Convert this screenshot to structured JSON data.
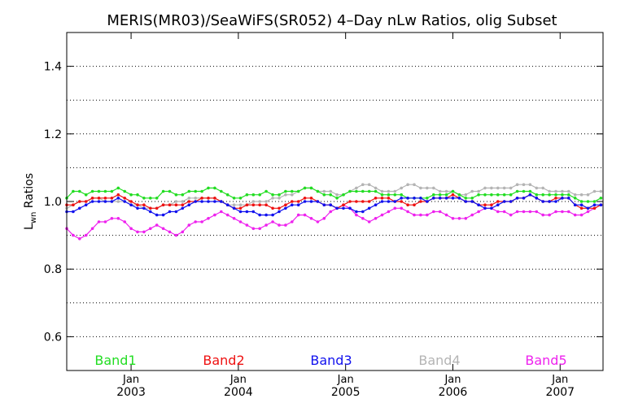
{
  "chart_data": {
    "type": "line",
    "title": "MERIS(MR03)/SeaWiFS(SR052) 4–Day nLw Ratios, olig Subset",
    "ylabel_main": "L",
    "ylabel_sub": "wn",
    "ylabel_rest": " Ratios",
    "xlim": [
      2002.4,
      2007.4
    ],
    "ylim": [
      0.5,
      1.5
    ],
    "yticks": [
      {
        "value": 0.6,
        "label": "0.6"
      },
      {
        "value": 0.8,
        "label": "0.8"
      },
      {
        "value": 1.0,
        "label": "1.0"
      },
      {
        "value": 1.2,
        "label": "1.2"
      },
      {
        "value": 1.4,
        "label": "1.4"
      }
    ],
    "ygrid": [
      0.6,
      0.7,
      0.8,
      0.9,
      1.0,
      1.1,
      1.2,
      1.3,
      1.4
    ],
    "xticks": [
      {
        "value": 2003.0,
        "month": "Jan",
        "year": "2003"
      },
      {
        "value": 2004.0,
        "month": "Jan",
        "year": "2004"
      },
      {
        "value": 2005.0,
        "month": "Jan",
        "year": "2005"
      },
      {
        "value": 2006.0,
        "month": "Jan",
        "year": "2006"
      },
      {
        "value": 2007.0,
        "month": "Jan",
        "year": "2007"
      }
    ],
    "x": [
      2002.4,
      2002.46,
      2002.52,
      2002.58,
      2002.64,
      2002.7,
      2002.76,
      2002.82,
      2002.88,
      2002.94,
      2003.0,
      2003.06,
      2003.12,
      2003.18,
      2003.24,
      2003.3,
      2003.36,
      2003.42,
      2003.48,
      2003.54,
      2003.6,
      2003.66,
      2003.72,
      2003.78,
      2003.84,
      2003.9,
      2003.96,
      2004.02,
      2004.08,
      2004.14,
      2004.2,
      2004.26,
      2004.32,
      2004.38,
      2004.44,
      2004.5,
      2004.56,
      2004.62,
      2004.68,
      2004.74,
      2004.8,
      2004.86,
      2004.92,
      2004.98,
      2005.04,
      2005.1,
      2005.16,
      2005.22,
      2005.28,
      2005.34,
      2005.4,
      2005.46,
      2005.52,
      2005.58,
      2005.64,
      2005.7,
      2005.76,
      2005.82,
      2005.88,
      2005.94,
      2006.0,
      2006.06,
      2006.12,
      2006.18,
      2006.24,
      2006.3,
      2006.36,
      2006.42,
      2006.48,
      2006.54,
      2006.6,
      2006.66,
      2006.72,
      2006.78,
      2006.84,
      2006.9,
      2006.96,
      2007.02,
      2007.08,
      2007.14,
      2007.2,
      2007.26,
      2007.32,
      2007.38
    ],
    "series": [
      {
        "name": "Band1",
        "color": "#22dd22",
        "values": [
          1.01,
          1.03,
          1.03,
          1.02,
          1.03,
          1.03,
          1.03,
          1.03,
          1.04,
          1.03,
          1.02,
          1.02,
          1.01,
          1.01,
          1.01,
          1.03,
          1.03,
          1.02,
          1.02,
          1.03,
          1.03,
          1.03,
          1.04,
          1.04,
          1.03,
          1.02,
          1.01,
          1.01,
          1.02,
          1.02,
          1.02,
          1.03,
          1.02,
          1.02,
          1.03,
          1.03,
          1.03,
          1.04,
          1.04,
          1.03,
          1.02,
          1.02,
          1.01,
          1.02,
          1.03,
          1.03,
          1.03,
          1.03,
          1.03,
          1.02,
          1.02,
          1.02,
          1.02,
          1.01,
          1.01,
          1.01,
          1.01,
          1.02,
          1.02,
          1.02,
          1.03,
          1.02,
          1.01,
          1.01,
          1.02,
          1.02,
          1.02,
          1.02,
          1.02,
          1.02,
          1.03,
          1.03,
          1.03,
          1.02,
          1.02,
          1.02,
          1.02,
          1.02,
          1.02,
          1.01,
          1.0,
          1.0,
          1.0,
          1.01
        ]
      },
      {
        "name": "Band2",
        "color": "#ee1111",
        "values": [
          0.99,
          0.99,
          1.0,
          1.0,
          1.01,
          1.01,
          1.01,
          1.01,
          1.02,
          1.01,
          1.0,
          0.99,
          0.99,
          0.98,
          0.98,
          0.99,
          0.99,
          0.99,
          0.99,
          1.0,
          1.0,
          1.01,
          1.01,
          1.01,
          1.0,
          0.99,
          0.98,
          0.98,
          0.99,
          0.99,
          0.99,
          0.99,
          0.98,
          0.98,
          0.99,
          1.0,
          1.0,
          1.01,
          1.01,
          1.0,
          0.99,
          0.99,
          0.98,
          0.99,
          1.0,
          1.0,
          1.0,
          1.0,
          1.01,
          1.01,
          1.01,
          1.0,
          1.0,
          0.99,
          0.99,
          1.0,
          1.0,
          1.01,
          1.01,
          1.01,
          1.02,
          1.01,
          1.0,
          1.0,
          0.99,
          0.99,
          0.99,
          1.0,
          1.0,
          1.0,
          1.01,
          1.01,
          1.02,
          1.01,
          1.0,
          1.0,
          1.01,
          1.01,
          1.01,
          0.99,
          0.98,
          0.98,
          0.98,
          0.99
        ]
      },
      {
        "name": "Band3",
        "color": "#1111ee",
        "values": [
          0.97,
          0.97,
          0.98,
          0.99,
          1.0,
          1.0,
          1.0,
          1.0,
          1.01,
          1.0,
          0.99,
          0.98,
          0.98,
          0.97,
          0.96,
          0.96,
          0.97,
          0.97,
          0.98,
          0.99,
          1.0,
          1.0,
          1.0,
          1.0,
          1.0,
          0.99,
          0.98,
          0.97,
          0.97,
          0.97,
          0.96,
          0.96,
          0.96,
          0.97,
          0.98,
          0.99,
          0.99,
          1.0,
          1.0,
          1.0,
          0.99,
          0.99,
          0.98,
          0.98,
          0.98,
          0.97,
          0.97,
          0.98,
          0.99,
          1.0,
          1.0,
          1.0,
          1.01,
          1.01,
          1.01,
          1.01,
          1.0,
          1.01,
          1.01,
          1.01,
          1.01,
          1.01,
          1.0,
          1.0,
          0.99,
          0.98,
          0.98,
          0.99,
          1.0,
          1.0,
          1.01,
          1.01,
          1.02,
          1.01,
          1.0,
          1.0,
          1.0,
          1.01,
          1.01,
          0.99,
          0.99,
          0.98,
          0.99,
          0.99
        ]
      },
      {
        "name": "Band4",
        "color": "#b4b4b4",
        "values": [
          0.98,
          0.99,
          1.0,
          1.0,
          1.01,
          1.01,
          1.0,
          1.0,
          1.0,
          1.0,
          0.99,
          0.99,
          0.98,
          0.98,
          0.98,
          0.99,
          0.99,
          1.0,
          1.0,
          1.01,
          1.01,
          1.01,
          1.01,
          1.01,
          1.0,
          0.99,
          0.99,
          0.99,
          0.99,
          1.0,
          1.0,
          1.0,
          1.01,
          1.01,
          1.02,
          1.02,
          1.03,
          1.04,
          1.04,
          1.03,
          1.03,
          1.03,
          1.02,
          1.02,
          1.03,
          1.04,
          1.05,
          1.05,
          1.04,
          1.03,
          1.03,
          1.03,
          1.04,
          1.05,
          1.05,
          1.04,
          1.04,
          1.04,
          1.03,
          1.03,
          1.03,
          1.02,
          1.02,
          1.03,
          1.03,
          1.04,
          1.04,
          1.04,
          1.04,
          1.04,
          1.05,
          1.05,
          1.05,
          1.04,
          1.04,
          1.03,
          1.03,
          1.03,
          1.03,
          1.02,
          1.02,
          1.02,
          1.03,
          1.03
        ]
      },
      {
        "name": "Band5",
        "color": "#ee22ee",
        "values": [
          0.92,
          0.9,
          0.89,
          0.9,
          0.92,
          0.94,
          0.94,
          0.95,
          0.95,
          0.94,
          0.92,
          0.91,
          0.91,
          0.92,
          0.93,
          0.92,
          0.91,
          0.9,
          0.91,
          0.93,
          0.94,
          0.94,
          0.95,
          0.96,
          0.97,
          0.96,
          0.95,
          0.94,
          0.93,
          0.92,
          0.92,
          0.93,
          0.94,
          0.93,
          0.93,
          0.94,
          0.96,
          0.96,
          0.95,
          0.94,
          0.95,
          0.97,
          0.98,
          0.99,
          0.98,
          0.96,
          0.95,
          0.94,
          0.95,
          0.96,
          0.97,
          0.98,
          0.98,
          0.97,
          0.96,
          0.96,
          0.96,
          0.97,
          0.97,
          0.96,
          0.95,
          0.95,
          0.95,
          0.96,
          0.97,
          0.98,
          0.98,
          0.97,
          0.97,
          0.96,
          0.97,
          0.97,
          0.97,
          0.97,
          0.96,
          0.96,
          0.97,
          0.97,
          0.97,
          0.96,
          0.96,
          0.97,
          0.98,
          0.99
        ]
      }
    ]
  }
}
